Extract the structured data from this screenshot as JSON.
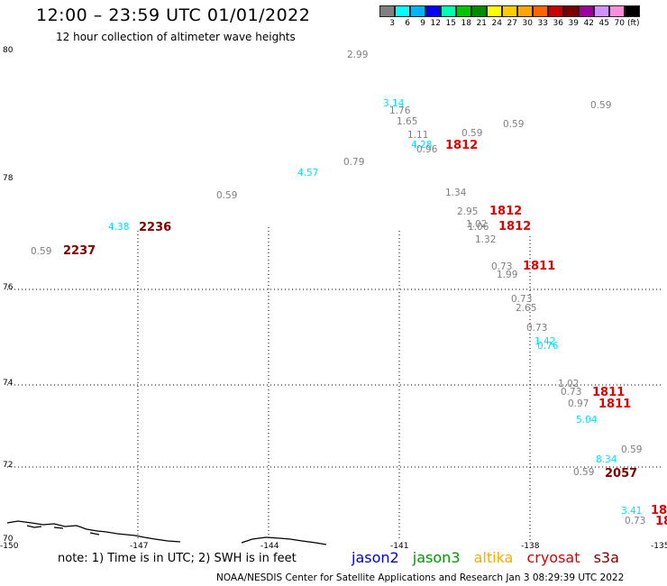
{
  "title": "12:00 – 23:59 UTC 01/01/2022",
  "subtitle": "12 hour collection of altimeter wave heights",
  "legend": {
    "unit": "(ft)",
    "colors": [
      "#808080",
      "#00ffff",
      "#00b4ff",
      "#0000ff",
      "#00ffb4",
      "#00c800",
      "#008c00",
      "#ffff00",
      "#ffcc00",
      "#ffa500",
      "#ff6400",
      "#c80000",
      "#780000",
      "#a0009c",
      "#d291ff",
      "#ff8cdc",
      "#000000"
    ],
    "labels": [
      "3",
      "6",
      "9",
      "12",
      "15",
      "18",
      "21",
      "24",
      "27",
      "30",
      "33",
      "36",
      "39",
      "42",
      "45",
      "70"
    ]
  },
  "map": {
    "lat_labels": [
      "80",
      "78",
      "76",
      "74",
      "72",
      "70"
    ],
    "lon_labels": [
      "-150",
      "-147",
      "-144",
      "-141",
      "-138",
      "-135"
    ]
  },
  "observations": [
    {
      "text": "2.99",
      "color": "#808080"
    },
    {
      "text": "3.14",
      "color": "#00e0ff"
    },
    {
      "text": "1.76",
      "color": "#808080"
    },
    {
      "text": "1.65",
      "color": "#808080"
    },
    {
      "text": "0.59",
      "color": "#808080"
    },
    {
      "text": "0.59",
      "color": "#808080"
    },
    {
      "text": "1.11",
      "color": "#808080"
    },
    {
      "text": "0.59",
      "color": "#808080"
    },
    {
      "text": "4.28",
      "color": "#00e0ff"
    },
    {
      "text": "0.96",
      "color": "#808080"
    },
    {
      "text": "0.79",
      "color": "#808080"
    },
    {
      "text": "4.57",
      "color": "#00e0ff"
    },
    {
      "text": "0.59",
      "color": "#808080"
    },
    {
      "text": "1.34",
      "color": "#808080"
    },
    {
      "text": "2.95",
      "color": "#808080"
    },
    {
      "text": "1.02",
      "color": "#808080"
    },
    {
      "text": "1.06",
      "color": "#808080"
    },
    {
      "text": "1.32",
      "color": "#808080"
    },
    {
      "text": "4.38",
      "color": "#00e0ff"
    },
    {
      "text": "0.59",
      "color": "#808080"
    },
    {
      "text": "0.73",
      "color": "#808080"
    },
    {
      "text": "1.99",
      "color": "#808080"
    },
    {
      "text": "0.73",
      "color": "#808080"
    },
    {
      "text": "2.65",
      "color": "#808080"
    },
    {
      "text": "0.73",
      "color": "#808080"
    },
    {
      "text": "1.42",
      "color": "#00e0ff"
    },
    {
      "text": "0.76",
      "color": "#00e0ff"
    },
    {
      "text": "1.02",
      "color": "#808080"
    },
    {
      "text": "0.73",
      "color": "#808080"
    },
    {
      "text": "0.97",
      "color": "#808080"
    },
    {
      "text": "5.04",
      "color": "#00e0ff"
    },
    {
      "text": "0.59",
      "color": "#808080"
    },
    {
      "text": "8.34",
      "color": "#00e0ff"
    },
    {
      "text": "0.59",
      "color": "#808080"
    },
    {
      "text": "3.41",
      "color": "#00e0ff"
    },
    {
      "text": "0.73",
      "color": "#808080"
    }
  ],
  "times": [
    {
      "text": "1812",
      "color": "#e00000"
    },
    {
      "text": "1812",
      "color": "#e00000"
    },
    {
      "text": "1812",
      "color": "#e00000"
    },
    {
      "text": "1811",
      "color": "#e00000"
    },
    {
      "text": "1811",
      "color": "#e00000"
    },
    {
      "text": "1811",
      "color": "#e00000"
    },
    {
      "text": "2236",
      "color": "#800000"
    },
    {
      "text": "2237",
      "color": "#800000"
    },
    {
      "text": "2057",
      "color": "#800000"
    },
    {
      "text": "18",
      "color": "#e00000"
    },
    {
      "text": "18",
      "color": "#e00000"
    }
  ],
  "note": "note: 1) Time is in UTC; 2) SWH is in feet",
  "satellites": [
    {
      "name": "jason2",
      "color": "#0000dd"
    },
    {
      "name": "jason3",
      "color": "#009900"
    },
    {
      "name": "altika",
      "color": "#ffaa00"
    },
    {
      "name": "cryosat",
      "color": "#dd0000"
    },
    {
      "name": "s3a",
      "color": "#800000"
    }
  ],
  "footer": "NOAA/NESDIS Center for Satellite Applications and Research   Jan  3 08:29:39 UTC 2022"
}
